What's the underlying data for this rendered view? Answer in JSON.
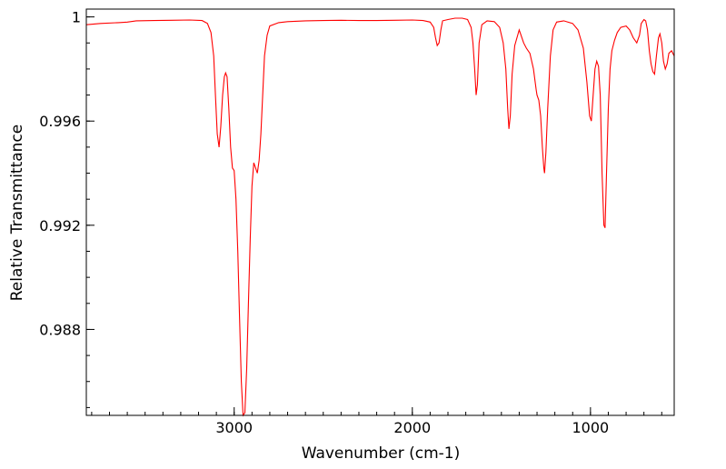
{
  "chart_data": {
    "type": "line",
    "title": "",
    "xlabel": "Wavenumber (cm-1)",
    "ylabel": "Relative Transmittance",
    "xlim": [
      3830,
      530
    ],
    "ylim": [
      0.9847,
      1.0003
    ],
    "x_reversed": true,
    "grid": false,
    "x_ticks": [
      {
        "value": 3000,
        "label": "3000"
      },
      {
        "value": 2000,
        "label": "2000"
      },
      {
        "value": 1000,
        "label": "1000"
      }
    ],
    "y_ticks": [
      {
        "value": 1.0,
        "label": "1"
      },
      {
        "value": 0.996,
        "label": "0.996"
      },
      {
        "value": 0.992,
        "label": "0.992"
      },
      {
        "value": 0.988,
        "label": "0.988"
      }
    ],
    "x_minor_step": 100,
    "y_minor_step": 0.001,
    "series": [
      {
        "color": "#ff0000",
        "points": [
          [
            3830,
            0.9997
          ],
          [
            3750,
            0.99975
          ],
          [
            3650,
            0.99978
          ],
          [
            3600,
            0.9998
          ],
          [
            3550,
            0.99985
          ],
          [
            3450,
            0.99986
          ],
          [
            3350,
            0.99987
          ],
          [
            3250,
            0.99988
          ],
          [
            3180,
            0.99986
          ],
          [
            3150,
            0.99975
          ],
          [
            3130,
            0.9994
          ],
          [
            3115,
            0.9985
          ],
          [
            3105,
            0.997
          ],
          [
            3095,
            0.9955
          ],
          [
            3085,
            0.995
          ],
          [
            3075,
            0.9958
          ],
          [
            3065,
            0.997
          ],
          [
            3055,
            0.9977
          ],
          [
            3048,
            0.99785
          ],
          [
            3040,
            0.9977
          ],
          [
            3030,
            0.9965
          ],
          [
            3020,
            0.995
          ],
          [
            3010,
            0.9942
          ],
          [
            3000,
            0.9941
          ],
          [
            2990,
            0.993
          ],
          [
            2980,
            0.991
          ],
          [
            2970,
            0.9885
          ],
          [
            2960,
            0.986
          ],
          [
            2950,
            0.9847
          ],
          [
            2940,
            0.9848
          ],
          [
            2930,
            0.9865
          ],
          [
            2920,
            0.989
          ],
          [
            2910,
            0.9915
          ],
          [
            2900,
            0.9935
          ],
          [
            2890,
            0.9944
          ],
          [
            2880,
            0.9942
          ],
          [
            2870,
            0.994
          ],
          [
            2860,
            0.9945
          ],
          [
            2850,
            0.9955
          ],
          [
            2840,
            0.997
          ],
          [
            2830,
            0.9985
          ],
          [
            2815,
            0.9993
          ],
          [
            2800,
            0.99965
          ],
          [
            2750,
            0.99978
          ],
          [
            2700,
            0.99982
          ],
          [
            2600,
            0.99985
          ],
          [
            2500,
            0.99986
          ],
          [
            2400,
            0.99987
          ],
          [
            2300,
            0.99986
          ],
          [
            2200,
            0.99986
          ],
          [
            2100,
            0.99987
          ],
          [
            2000,
            0.99988
          ],
          [
            1940,
            0.99986
          ],
          [
            1900,
            0.9998
          ],
          [
            1880,
            0.9996
          ],
          [
            1870,
            0.9992
          ],
          [
            1860,
            0.9989
          ],
          [
            1850,
            0.999
          ],
          [
            1840,
            0.9995
          ],
          [
            1830,
            0.99985
          ],
          [
            1800,
            0.9999
          ],
          [
            1760,
            0.99995
          ],
          [
            1720,
            0.99995
          ],
          [
            1690,
            0.9999
          ],
          [
            1670,
            0.9996
          ],
          [
            1660,
            0.999
          ],
          [
            1650,
            0.998
          ],
          [
            1642,
            0.997
          ],
          [
            1635,
            0.9974
          ],
          [
            1625,
            0.999
          ],
          [
            1610,
            0.9997
          ],
          [
            1580,
            0.99985
          ],
          [
            1540,
            0.99982
          ],
          [
            1510,
            0.9996
          ],
          [
            1490,
            0.999
          ],
          [
            1475,
            0.998
          ],
          [
            1465,
            0.9965
          ],
          [
            1458,
            0.9957
          ],
          [
            1450,
            0.9962
          ],
          [
            1440,
            0.9978
          ],
          [
            1425,
            0.9989
          ],
          [
            1400,
            0.9995
          ],
          [
            1390,
            0.9993
          ],
          [
            1375,
            0.999
          ],
          [
            1360,
            0.9988
          ],
          [
            1340,
            0.9986
          ],
          [
            1320,
            0.998
          ],
          [
            1305,
            0.9972
          ],
          [
            1300,
            0.997
          ],
          [
            1290,
            0.9968
          ],
          [
            1280,
            0.9962
          ],
          [
            1270,
            0.995
          ],
          [
            1262,
            0.9942
          ],
          [
            1258,
            0.994
          ],
          [
            1250,
            0.9948
          ],
          [
            1240,
            0.9965
          ],
          [
            1225,
            0.9985
          ],
          [
            1210,
            0.9995
          ],
          [
            1190,
            0.9998
          ],
          [
            1150,
            0.99985
          ],
          [
            1100,
            0.99975
          ],
          [
            1070,
            0.9995
          ],
          [
            1040,
            0.9988
          ],
          [
            1020,
            0.9975
          ],
          [
            1005,
            0.9962
          ],
          [
            995,
            0.996
          ],
          [
            985,
            0.997
          ],
          [
            975,
            0.998
          ],
          [
            965,
            0.9983
          ],
          [
            955,
            0.9981
          ],
          [
            945,
            0.997
          ],
          [
            935,
            0.994
          ],
          [
            925,
            0.992
          ],
          [
            918,
            0.9919
          ],
          [
            910,
            0.994
          ],
          [
            900,
            0.9965
          ],
          [
            890,
            0.998
          ],
          [
            880,
            0.9987
          ],
          [
            865,
            0.9991
          ],
          [
            850,
            0.9994
          ],
          [
            830,
            0.9996
          ],
          [
            800,
            0.99965
          ],
          [
            780,
            0.9995
          ],
          [
            760,
            0.9992
          ],
          [
            740,
            0.999
          ],
          [
            725,
            0.9993
          ],
          [
            715,
            0.99975
          ],
          [
            700,
            0.9999
          ],
          [
            690,
            0.99985
          ],
          [
            680,
            0.9995
          ],
          [
            670,
            0.9987
          ],
          [
            660,
            0.9982
          ],
          [
            650,
            0.9979
          ],
          [
            640,
            0.9978
          ],
          [
            630,
            0.9985
          ],
          [
            618,
            0.9992
          ],
          [
            610,
            0.99935
          ],
          [
            600,
            0.999
          ],
          [
            590,
            0.9983
          ],
          [
            580,
            0.998
          ],
          [
            570,
            0.9982
          ],
          [
            560,
            0.9986
          ],
          [
            545,
            0.9987
          ],
          [
            530,
            0.9985
          ]
        ]
      }
    ]
  }
}
